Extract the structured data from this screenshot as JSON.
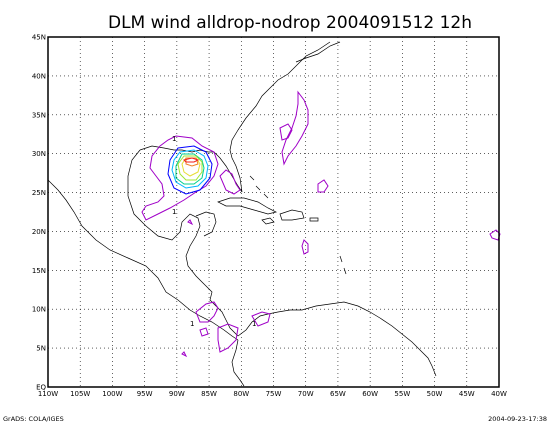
{
  "title": "DLM wind alldrop-nodrop 2004091512 12h",
  "footer_left": "GrADS: COLA/IGES",
  "footer_right": "2004-09-23-17:38",
  "x_ticks": [
    "110W",
    "105W",
    "100W",
    "95W",
    "90W",
    "85W",
    "80W",
    "75W",
    "70W",
    "65W",
    "60W",
    "55W",
    "50W",
    "45W",
    "40W"
  ],
  "y_ticks": [
    "EQ",
    "5N",
    "10N",
    "15N",
    "20N",
    "25N",
    "30N",
    "35N",
    "40N",
    "45N"
  ],
  "contour_labels": [
    "1",
    "1",
    "1",
    "1"
  ],
  "contour_colors": {
    "level1": "#a000c8",
    "level2": "#0000ff",
    "level3": "#00b4ff",
    "level4": "#00d28c",
    "level5": "#a0e632",
    "level6": "#e6dc32",
    "level7": "#f08228",
    "level8": "#f01e1e"
  },
  "chart_data": {
    "type": "contour map",
    "xlim": [
      "110W",
      "40W"
    ],
    "ylim": [
      "EQ",
      "45N"
    ],
    "grid": true
  }
}
